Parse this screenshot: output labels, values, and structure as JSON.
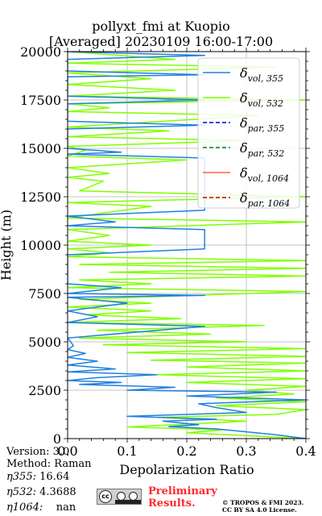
{
  "chart_data": {
    "type": "line",
    "title_line1": "pollyxt_fmi at Kuopio",
    "title_line2": "[Averaged] 20230109 16:00-17:00",
    "xlabel": "Depolarization Ratio",
    "ylabel": "Height (m)",
    "xlim": [
      0,
      0.4
    ],
    "ylim": [
      0,
      20000
    ],
    "xticks": [
      "0.0",
      "0.1",
      "0.2",
      "0.3",
      "0.4"
    ],
    "yticks": [
      "0",
      "2500",
      "5000",
      "7500",
      "10000",
      "12500",
      "15000",
      "17500",
      "20000"
    ],
    "grid": true,
    "legend_position": "top-right",
    "legend": [
      {
        "main": "δ",
        "sub": "vol, 355",
        "color": "#1f80e0",
        "style": "solid"
      },
      {
        "main": "δ",
        "sub": "vol, 532",
        "color": "#80ff00",
        "style": "solid"
      },
      {
        "main": "δ",
        "sub": "par, 355",
        "color": "#0000cc",
        "style": "dashed"
      },
      {
        "main": "δ",
        "sub": "par, 532",
        "color": "#008000",
        "style": "dashed"
      },
      {
        "main": "δ",
        "sub": "vol, 1064",
        "color": "#ff6040",
        "style": "solid"
      },
      {
        "main": "δ",
        "sub": "par, 1064",
        "color": "#cc0000",
        "style": "dashed"
      }
    ],
    "series": [
      {
        "name": "δvol, 355",
        "color": "#1f80e0",
        "points": [
          [
            0.4,
            0
          ],
          [
            0.35,
            200
          ],
          [
            0.25,
            500
          ],
          [
            0.17,
            620
          ],
          [
            0.22,
            720
          ],
          [
            0.16,
            900
          ],
          [
            0.25,
            1000
          ],
          [
            0.1,
            1150
          ],
          [
            0.3,
            1350
          ],
          [
            0.25,
            1600
          ],
          [
            0.22,
            1800
          ],
          [
            0.4,
            2000
          ],
          [
            0.2,
            2200
          ],
          [
            0.35,
            2400
          ],
          [
            0.1,
            2500
          ],
          [
            0.18,
            2650
          ],
          [
            0.02,
            2800
          ],
          [
            0.09,
            2900
          ],
          [
            0.0,
            3000
          ],
          [
            0.05,
            3150
          ],
          [
            0.15,
            3300
          ],
          [
            0.0,
            3450
          ],
          [
            0.08,
            3600
          ],
          [
            0.0,
            3800
          ],
          [
            0.05,
            4000
          ],
          [
            0.0,
            4200
          ],
          [
            0.03,
            4400
          ],
          [
            0.0,
            4600
          ],
          [
            0.01,
            4800
          ],
          [
            0.0,
            5200
          ],
          [
            0.23,
            5800
          ],
          [
            0.0,
            6000
          ],
          [
            0.05,
            6300
          ],
          [
            0.0,
            6600
          ],
          [
            0.1,
            7000
          ],
          [
            0.0,
            7300
          ],
          [
            0.23,
            7400
          ],
          [
            0.0,
            7500
          ],
          [
            0.09,
            7800
          ],
          [
            0.0,
            8000
          ],
          [
            0.0,
            9500
          ],
          [
            0.23,
            9800
          ],
          [
            0.23,
            10800
          ],
          [
            0.0,
            11000
          ],
          [
            0.08,
            11200
          ],
          [
            0.0,
            11500
          ],
          [
            0.23,
            11800
          ],
          [
            0.23,
            14500
          ],
          [
            0.0,
            14700
          ],
          [
            0.09,
            14800
          ],
          [
            0.0,
            15000
          ],
          [
            0.0,
            16000
          ],
          [
            0.23,
            16200
          ],
          [
            0.0,
            16400
          ],
          [
            0.0,
            17300
          ],
          [
            0.23,
            17500
          ],
          [
            0.0,
            17700
          ],
          [
            0.0,
            18700
          ],
          [
            0.23,
            18800
          ],
          [
            0.0,
            19000
          ],
          [
            0.0,
            19600
          ],
          [
            0.23,
            19800
          ],
          [
            0.0,
            20000
          ]
        ]
      },
      {
        "name": "δvol, 532",
        "color": "#80ff00",
        "points": [
          [
            0.4,
            0
          ],
          [
            0.3,
            150
          ],
          [
            0.2,
            300
          ],
          [
            0.26,
            450
          ],
          [
            0.1,
            600
          ],
          [
            0.2,
            750
          ],
          [
            0.3,
            900
          ],
          [
            0.15,
            1100
          ],
          [
            0.35,
            1250
          ],
          [
            0.4,
            1500
          ],
          [
            0.25,
            1700
          ],
          [
            0.4,
            1900
          ],
          [
            0.25,
            2100
          ],
          [
            0.38,
            2300
          ],
          [
            0.3,
            2500
          ],
          [
            0.4,
            2700
          ],
          [
            0.2,
            2900
          ],
          [
            0.4,
            3100
          ],
          [
            0.15,
            3300
          ],
          [
            0.4,
            3500
          ],
          [
            0.2,
            3700
          ],
          [
            0.4,
            3900
          ],
          [
            0.14,
            4050
          ],
          [
            0.4,
            4250
          ],
          [
            0.1,
            4450
          ],
          [
            0.4,
            4650
          ],
          [
            0.06,
            4850
          ],
          [
            0.3,
            5000
          ],
          [
            0.02,
            5200
          ],
          [
            0.24,
            5400
          ],
          [
            0.05,
            5600
          ],
          [
            0.33,
            5850
          ],
          [
            0.0,
            6000
          ],
          [
            0.19,
            6200
          ],
          [
            0.03,
            6400
          ],
          [
            0.14,
            6600
          ],
          [
            0.0,
            6800
          ],
          [
            0.14,
            7000
          ],
          [
            0.02,
            7200
          ],
          [
            0.4,
            7600
          ],
          [
            0.0,
            7800
          ],
          [
            0.14,
            8000
          ],
          [
            0.02,
            8200
          ],
          [
            0.4,
            8400
          ],
          [
            0.07,
            8600
          ],
          [
            0.4,
            8800
          ],
          [
            0.02,
            9000
          ],
          [
            0.4,
            9200
          ],
          [
            0.0,
            9400
          ],
          [
            0.07,
            9600
          ],
          [
            0.0,
            9800
          ],
          [
            0.14,
            10000
          ],
          [
            0.0,
            10200
          ],
          [
            0.07,
            10500
          ],
          [
            0.0,
            10800
          ],
          [
            0.4,
            11200
          ],
          [
            0.0,
            11400
          ],
          [
            0.14,
            12000
          ],
          [
            0.0,
            12200
          ],
          [
            0.4,
            12500
          ],
          [
            0.02,
            12800
          ],
          [
            0.06,
            13300
          ],
          [
            0.0,
            13500
          ],
          [
            0.07,
            13700
          ],
          [
            0.0,
            14000
          ],
          [
            0.2,
            14400
          ],
          [
            0.0,
            14600
          ],
          [
            0.03,
            14900
          ],
          [
            0.0,
            15100
          ],
          [
            0.3,
            15400
          ],
          [
            0.0,
            15600
          ],
          [
            0.17,
            15900
          ],
          [
            0.0,
            16100
          ],
          [
            0.32,
            16700
          ],
          [
            0.0,
            16900
          ],
          [
            0.07,
            17100
          ],
          [
            0.0,
            17300
          ],
          [
            0.4,
            17500
          ],
          [
            0.0,
            17700
          ],
          [
            0.18,
            18000
          ],
          [
            0.0,
            18300
          ],
          [
            0.14,
            18600
          ],
          [
            0.0,
            18900
          ],
          [
            0.35,
            19200
          ],
          [
            0.0,
            19400
          ],
          [
            0.18,
            19600
          ],
          [
            0.0,
            20000
          ]
        ]
      }
    ]
  },
  "footer": {
    "version": "Version: 3.0",
    "method": "Raman",
    "method_prefix": "Method: ",
    "eta355_label": "η355:",
    "eta355_value": "16.64",
    "eta532_label": "η532:",
    "eta532_value": "4.3688",
    "eta1064_label": "η1064:",
    "eta1064_value": "nan",
    "preliminary_line1": "Preliminary",
    "preliminary_line2": "Results.",
    "copyright_line1": "© TROPOS & FMI 2023.",
    "copyright_line2": "CC BY SA 4.0 License.",
    "cc_label": "cc",
    "cc_by": "BY",
    "cc_sa": "SA"
  }
}
